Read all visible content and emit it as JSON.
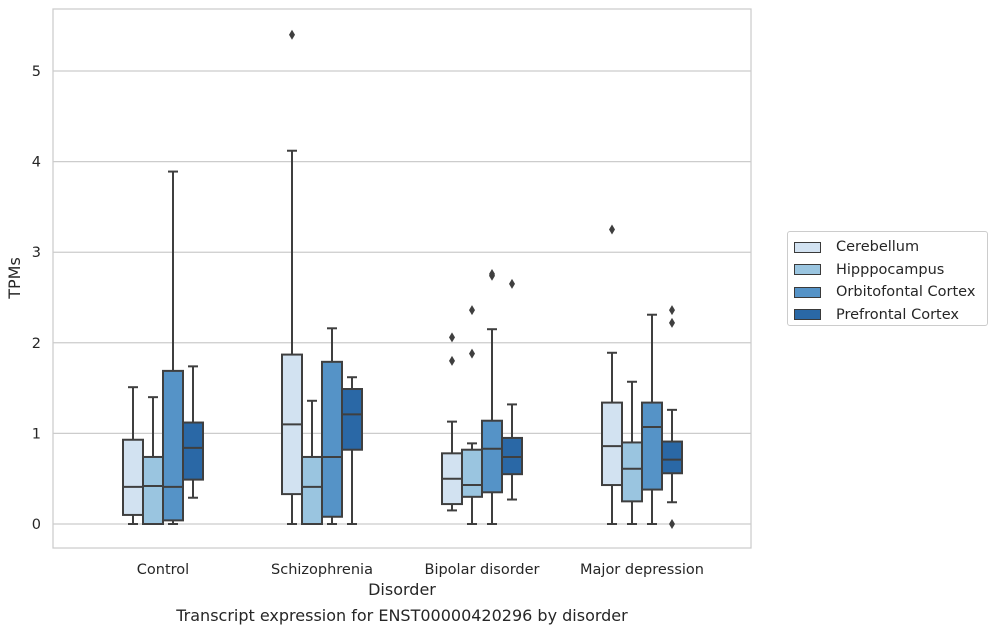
{
  "caption": "Transcript expression for ENST00000420296 by disorder",
  "chart_data": {
    "type": "box",
    "xlabel": "Disorder",
    "ylabel": "TPMs",
    "ylim": [
      -0.26,
      5.69
    ],
    "yticks": [
      0,
      1,
      2,
      3,
      4,
      5
    ],
    "grid": "horizontal",
    "legend_position": "right",
    "categories": [
      "Control",
      "Schizophrenia",
      "Bipolar disorder",
      "Major depression"
    ],
    "series": [
      {
        "name": "Cerebellum",
        "color": "#d2e2f1",
        "boxes": [
          {
            "whislo": 0.0,
            "q1": 0.1,
            "med": 0.41,
            "q3": 0.93,
            "whishi": 1.51,
            "fliers": []
          },
          {
            "whislo": 0.0,
            "q1": 0.33,
            "med": 1.1,
            "q3": 1.87,
            "whishi": 4.12,
            "fliers": [
              5.4
            ]
          },
          {
            "whislo": 0.15,
            "q1": 0.22,
            "med": 0.5,
            "q3": 0.78,
            "whishi": 1.13,
            "fliers": [
              1.8,
              2.06
            ]
          },
          {
            "whislo": 0.0,
            "q1": 0.43,
            "med": 0.86,
            "q3": 1.34,
            "whishi": 1.89,
            "fliers": [
              3.25
            ]
          }
        ]
      },
      {
        "name": "Hipppocampus",
        "color": "#9ac5e0",
        "boxes": [
          {
            "whislo": 0.0,
            "q1": 0.0,
            "med": 0.42,
            "q3": 0.74,
            "whishi": 1.4,
            "fliers": []
          },
          {
            "whislo": 0.0,
            "q1": 0.0,
            "med": 0.41,
            "q3": 0.74,
            "whishi": 1.36,
            "fliers": []
          },
          {
            "whislo": 0.0,
            "q1": 0.3,
            "med": 0.43,
            "q3": 0.82,
            "whishi": 0.89,
            "fliers": [
              1.88,
              2.36
            ]
          },
          {
            "whislo": 0.0,
            "q1": 0.25,
            "med": 0.61,
            "q3": 0.9,
            "whishi": 1.57,
            "fliers": []
          }
        ]
      },
      {
        "name": "Orbitofontal Cortex",
        "color": "#5593c7",
        "boxes": [
          {
            "whislo": 0.0,
            "q1": 0.04,
            "med": 0.41,
            "q3": 1.69,
            "whishi": 3.89,
            "fliers": []
          },
          {
            "whislo": 0.0,
            "q1": 0.08,
            "med": 0.74,
            "q3": 1.79,
            "whishi": 2.16,
            "fliers": []
          },
          {
            "whislo": 0.0,
            "q1": 0.35,
            "med": 0.83,
            "q3": 1.14,
            "whishi": 2.15,
            "fliers": [
              2.74,
              2.76
            ]
          },
          {
            "whislo": 0.0,
            "q1": 0.38,
            "med": 1.07,
            "q3": 1.34,
            "whishi": 2.31,
            "fliers": []
          }
        ]
      },
      {
        "name": "Prefrontal Cortex",
        "color": "#2a68a6",
        "boxes": [
          {
            "whislo": 0.29,
            "q1": 0.49,
            "med": 0.84,
            "q3": 1.12,
            "whishi": 1.74,
            "fliers": []
          },
          {
            "whislo": 0.0,
            "q1": 0.82,
            "med": 1.21,
            "q3": 1.49,
            "whishi": 1.62,
            "fliers": []
          },
          {
            "whislo": 0.27,
            "q1": 0.55,
            "med": 0.74,
            "q3": 0.95,
            "whishi": 1.32,
            "fliers": [
              2.65
            ]
          },
          {
            "whislo": 0.24,
            "q1": 0.56,
            "med": 0.71,
            "q3": 0.91,
            "whishi": 1.26,
            "fliers": [
              0.0,
              2.22,
              2.36
            ]
          }
        ]
      }
    ]
  }
}
